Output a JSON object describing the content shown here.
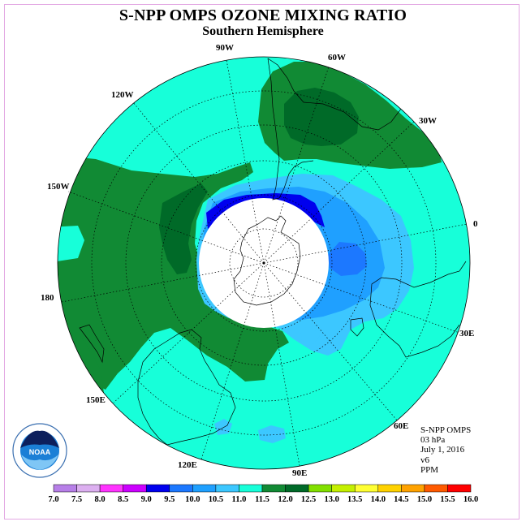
{
  "title": "S-NPP OMPS OZONE MIXING RATIO",
  "subtitle": "Southern Hemisphere",
  "longitude_labels": {
    "w90": "90W",
    "w60": "60W",
    "w30": "30W",
    "deg0": "0",
    "e30": "30E",
    "e60": "60E",
    "e90": "90E",
    "e120": "120E",
    "e150": "150E",
    "deg180": "180",
    "w150": "150W",
    "w120": "120W"
  },
  "info": {
    "instrument": "S-NPP OMPS",
    "level": "03 hPa",
    "date": "July 1, 2016",
    "version": "v6",
    "units": "PPM"
  },
  "logo": {
    "text": "NOAA"
  },
  "colorbar": {
    "ticks": [
      "7.0",
      "7.5",
      "8.0",
      "8.5",
      "9.0",
      "9.5",
      "10.0",
      "10.5",
      "11.0",
      "11.5",
      "12.0",
      "12.5",
      "13.0",
      "13.5",
      "14.0",
      "14.5",
      "15.0",
      "15.5",
      "16.0"
    ],
    "colors": [
      "#b77fe8",
      "#dcaff0",
      "#ff33ff",
      "#cc00ff",
      "#0000ee",
      "#1c78ff",
      "#1fa0ff",
      "#3cc7ff",
      "#17ffd9",
      "#118a34",
      "#006a28",
      "#82e000",
      "#c4f000",
      "#ffff33",
      "#ffd200",
      "#ffa200",
      "#ff5a00",
      "#ff0000",
      "#8b5a3c"
    ]
  },
  "colors": {
    "ocean_fill": "#17ffd9",
    "high": "#118a34",
    "higher": "#006a28",
    "low_light": "#3cc7ff",
    "low_mid": "#1fa0ff",
    "low_deep": "#1c78ff",
    "lowest": "#0000ee",
    "frame": "#e3a8e3"
  }
}
